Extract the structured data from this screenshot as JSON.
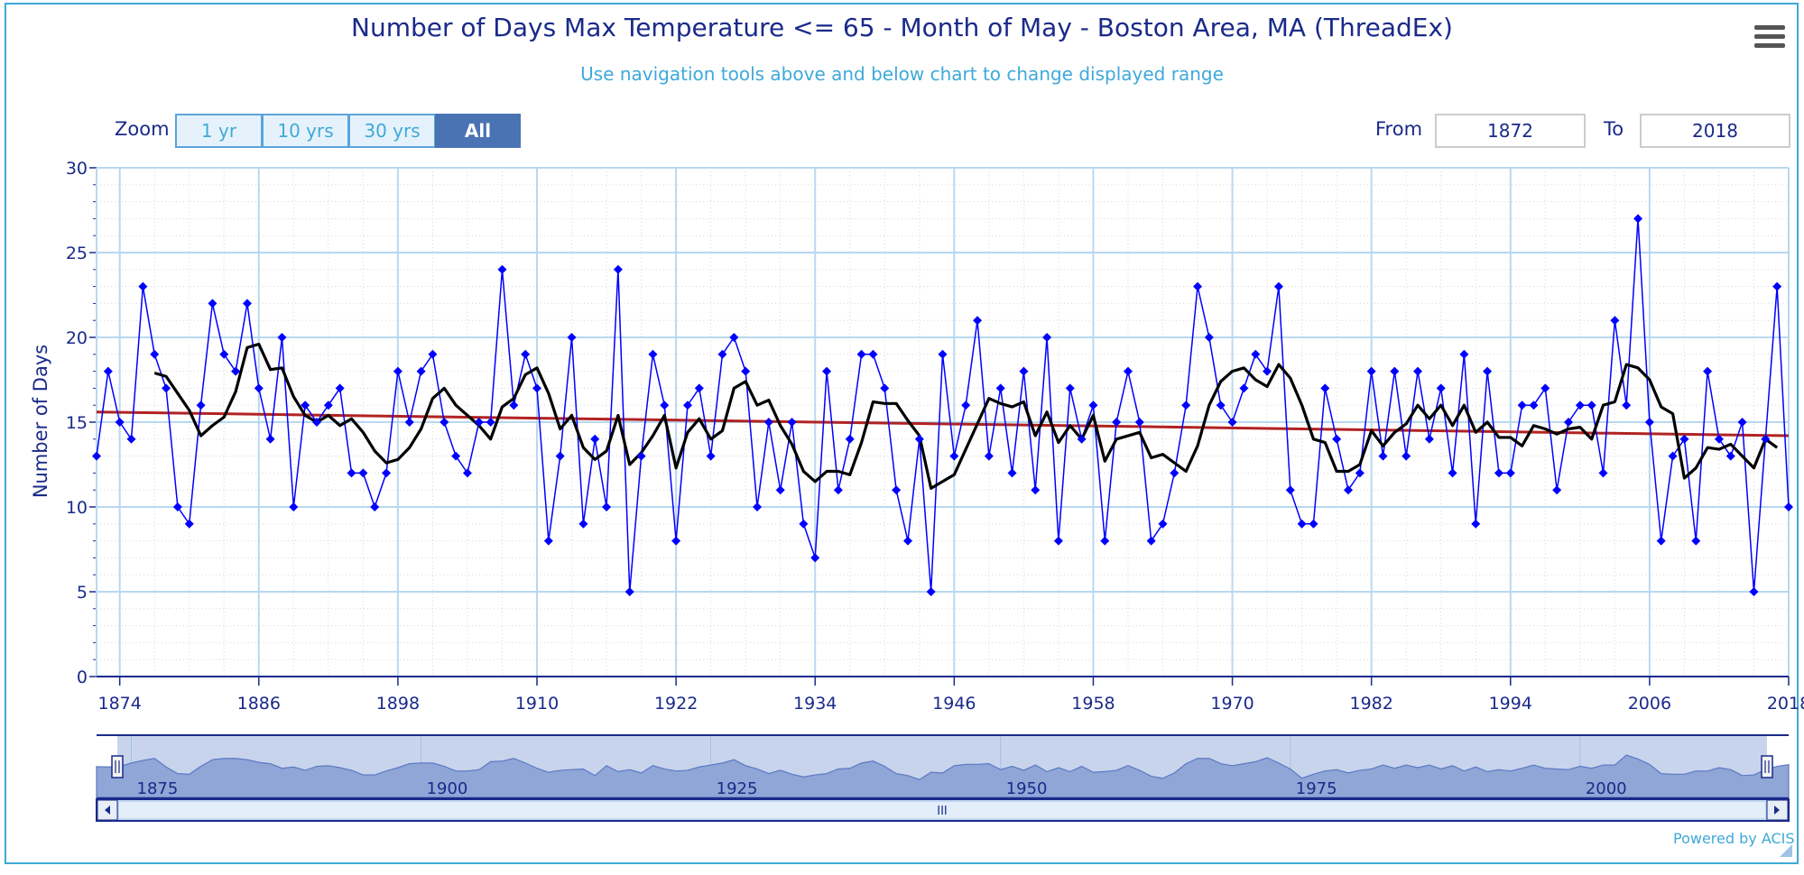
{
  "page": {
    "title": "Number of Days Max Temperature <= 65 - Month of May - Boston Area, MA (ThreadEx)",
    "subtitle": "Use navigation tools above and below chart to change displayed range",
    "powered_by": "Powered by ACIS",
    "menu_icon": "hamburger-menu-icon"
  },
  "zoom": {
    "label": "Zoom",
    "buttons": [
      "1 yr",
      "10 yrs",
      "30 yrs",
      "All"
    ],
    "active": "All"
  },
  "range": {
    "from_label": "From",
    "from_value": "1872",
    "to_label": "To",
    "to_value": "2018"
  },
  "navigator": {
    "tick_labels": [
      "1875",
      "1900",
      "1925",
      "1950",
      "1975",
      "2000"
    ],
    "grip_glyph": "III"
  },
  "colors": {
    "series": "#0000ff",
    "mean": "#000000",
    "trend": "#b22222",
    "axis": "#1a2a8a",
    "grid": "#b8d8f0",
    "accent": "#3fa9d8"
  },
  "chart_data": {
    "type": "line",
    "title": "Number of Days Max Temperature <= 65 - Month of May - Boston Area, MA (ThreadEx)",
    "subtitle": "Use navigation tools above and below chart to change displayed range",
    "xlabel": "",
    "ylabel": "Number of Days",
    "xlim": [
      1872,
      2018
    ],
    "ylim": [
      0,
      30
    ],
    "x_ticks": [
      1874,
      1886,
      1898,
      1910,
      1922,
      1934,
      1946,
      1958,
      1970,
      1982,
      1994,
      2006,
      2018
    ],
    "y_ticks": [
      0,
      5,
      10,
      15,
      20,
      25,
      30
    ],
    "grid": true,
    "x_start": 1872,
    "series": [
      {
        "role": "annual",
        "marker": "diamond",
        "values": [
          13,
          18,
          15,
          14,
          23,
          19,
          17,
          10,
          9,
          16,
          22,
          19,
          18,
          22,
          17,
          14,
          20,
          10,
          16,
          15,
          16,
          17,
          12,
          12,
          10,
          12,
          18,
          15,
          18,
          19,
          15,
          13,
          12,
          15,
          15,
          24,
          16,
          19,
          17,
          8,
          13,
          20,
          9,
          14,
          10,
          24,
          5,
          13,
          19,
          16,
          8,
          16,
          17,
          13,
          19,
          20,
          18,
          10,
          15,
          11,
          15,
          9,
          7,
          18,
          11,
          14,
          19,
          19,
          17,
          11,
          8,
          14,
          5,
          19,
          13,
          16,
          21,
          13,
          17,
          12,
          18,
          11,
          20,
          8,
          17,
          14,
          16,
          8,
          15,
          18,
          15,
          8,
          9,
          12,
          16,
          23,
          20,
          16,
          15,
          17,
          19,
          18,
          23,
          11,
          9,
          9,
          17,
          14,
          11,
          12,
          18,
          13,
          18,
          13,
          18,
          14,
          17,
          12,
          19,
          9,
          18,
          12,
          12,
          16,
          16,
          17,
          11,
          15,
          16,
          16,
          12,
          21,
          16,
          27,
          15,
          8,
          13,
          14,
          8,
          18,
          14,
          13,
          15,
          5,
          14,
          23,
          10
        ]
      },
      {
        "role": "running-mean",
        "values": [
          null,
          null,
          null,
          null,
          null,
          17.9,
          17.7,
          16.7,
          15.7,
          14.2,
          14.8,
          15.3,
          16.8,
          19.4,
          19.6,
          18.1,
          18.2,
          16.5,
          15.4,
          15.0,
          15.4,
          14.8,
          15.2,
          14.4,
          13.3,
          12.6,
          12.8,
          13.5,
          14.6,
          16.4,
          17.0,
          16.0,
          15.4,
          14.8,
          14.0,
          15.9,
          16.4,
          17.8,
          18.2,
          16.7,
          14.6,
          15.4,
          13.5,
          12.8,
          13.3,
          15.4,
          12.5,
          13.2,
          14.2,
          15.4,
          12.3,
          14.4,
          15.2,
          14.0,
          14.5,
          17.0,
          17.4,
          16.0,
          16.3,
          14.8,
          13.7,
          12.1,
          11.5,
          12.1,
          12.1,
          11.9,
          13.8,
          16.2,
          16.1,
          16.1,
          15.1,
          14.2,
          11.1,
          11.5,
          11.9,
          13.4,
          14.9,
          16.4,
          16.1,
          15.9,
          16.2,
          14.2,
          15.6,
          13.8,
          14.8,
          14.0,
          15.4,
          12.7,
          14.0,
          14.2,
          14.4,
          12.9,
          13.1,
          12.6,
          12.1,
          13.6,
          16.0,
          17.4,
          18.0,
          18.2,
          17.5,
          17.1,
          18.4,
          17.6,
          16.0,
          14.0,
          13.8,
          12.1,
          12.1,
          12.5,
          14.5,
          13.6,
          14.4,
          14.9,
          16.0,
          15.2,
          16.0,
          14.8,
          16.0,
          14.4,
          15.0,
          14.1,
          14.1,
          13.6,
          14.8,
          14.6,
          14.3,
          14.6,
          14.7,
          14.0,
          16.0,
          16.2,
          18.4,
          18.2,
          17.5,
          15.9,
          15.5,
          11.7,
          12.3,
          13.5,
          13.4,
          13.7,
          13.0,
          12.3,
          14.0,
          13.5
        ]
      },
      {
        "role": "trend",
        "x": [
          1872,
          2018
        ],
        "values": [
          15.6,
          14.2
        ]
      }
    ]
  }
}
